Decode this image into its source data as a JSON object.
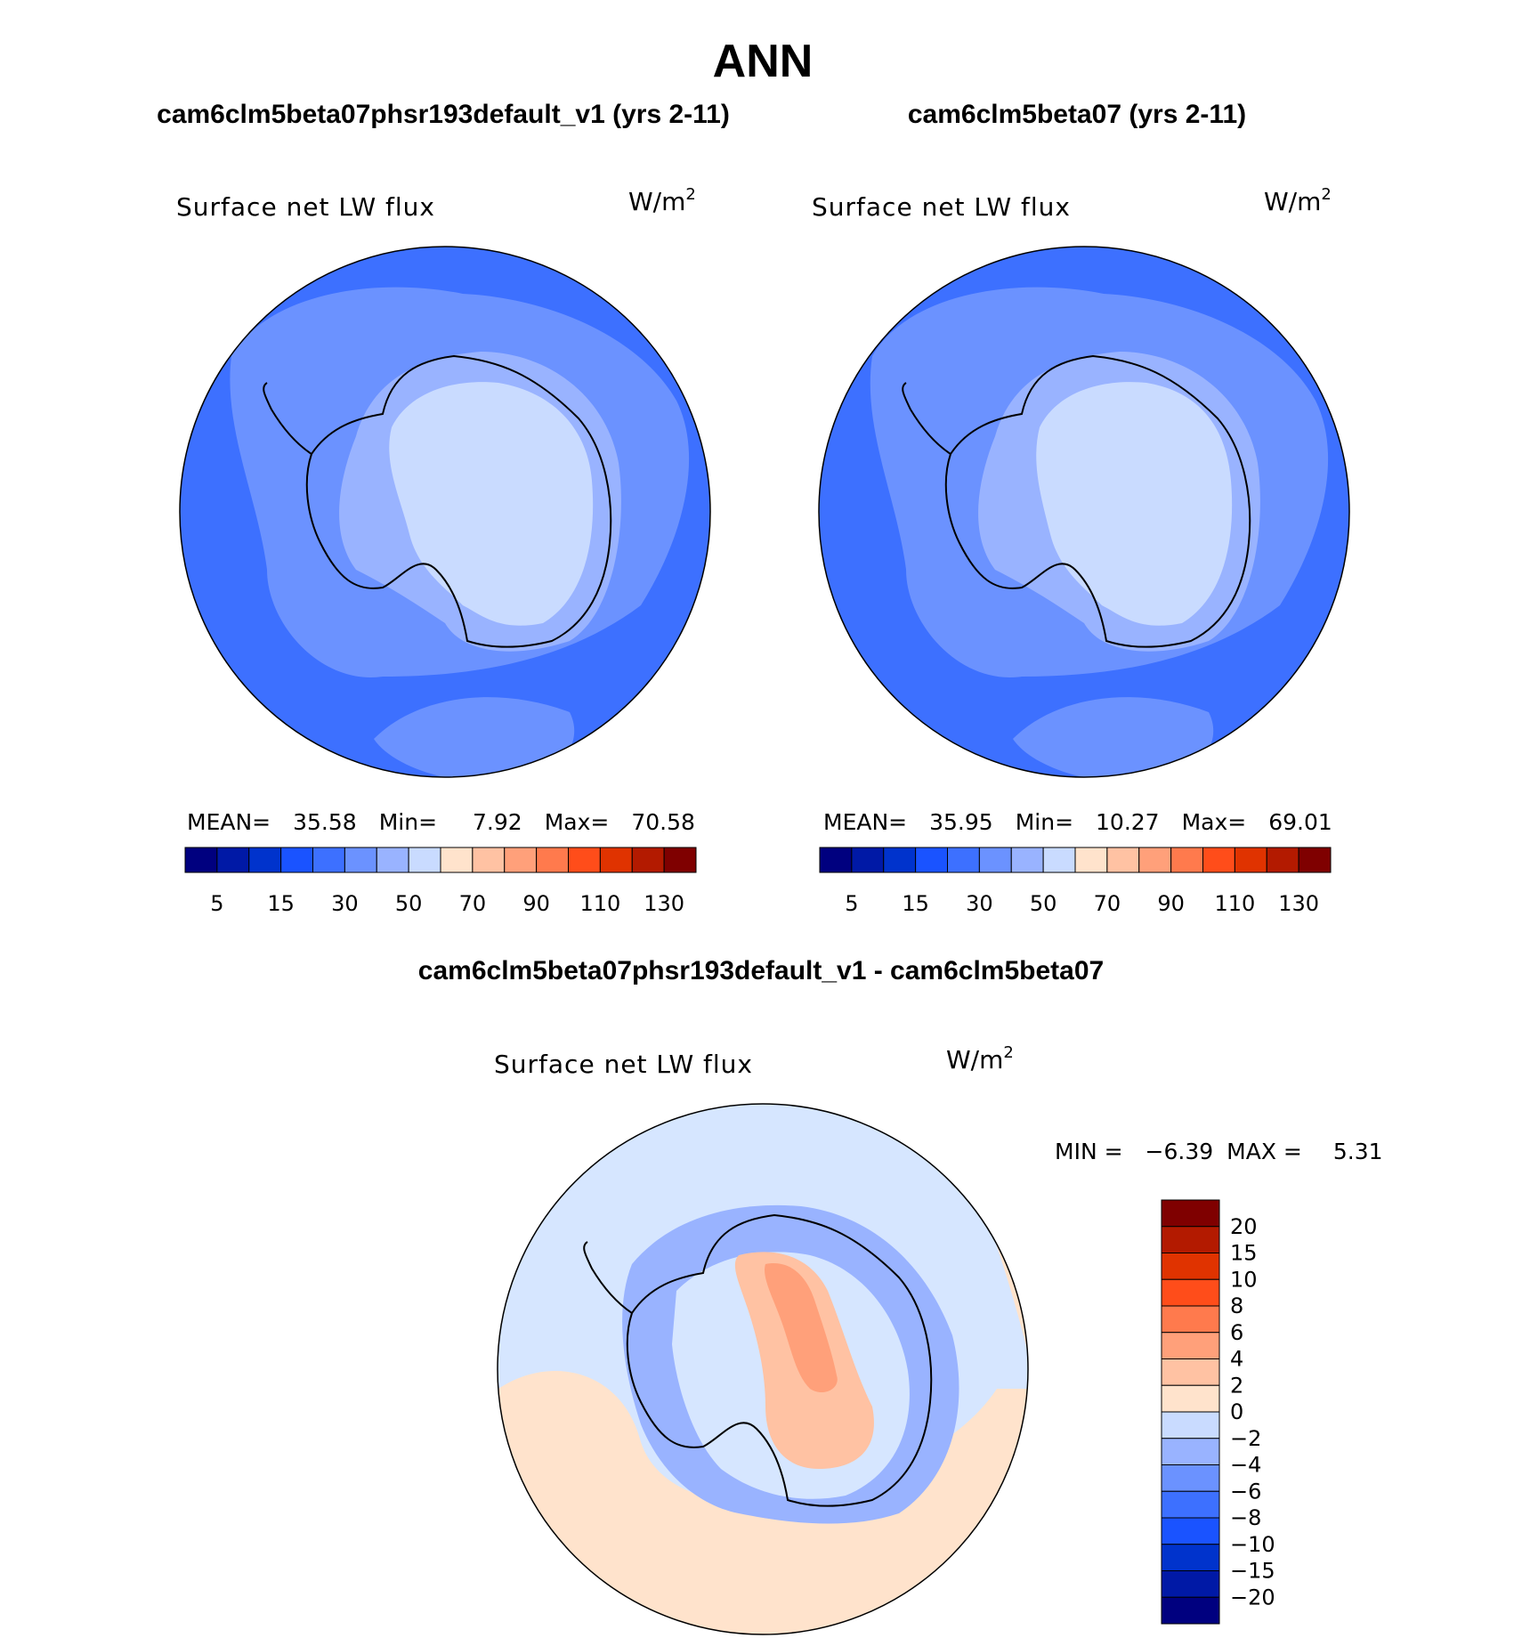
{
  "title": "ANN",
  "colors": {
    "abs": [
      "#00007f",
      "#0019a6",
      "#0033cc",
      "#1a53ff",
      "#3d70ff",
      "#6b92ff",
      "#99b3ff",
      "#c9dbff",
      "#ffe3cc",
      "#ffc2a3",
      "#ffa07a",
      "#ff7a4d",
      "#ff4d1a",
      "#e03300",
      "#b31a00",
      "#7f0000"
    ],
    "diff": [
      "#00007f",
      "#0019a6",
      "#0033cc",
      "#1a53ff",
      "#3d70ff",
      "#6b92ff",
      "#99b3ff",
      "#c9dbff",
      "#ffe3cc",
      "#ffc2a3",
      "#ffa07a",
      "#ff7a4d",
      "#ff4d1a",
      "#e03300",
      "#b31a00",
      "#7f0000"
    ]
  },
  "chart_data": [
    {
      "type": "heatmap",
      "title": "cam6clm5beta07phsr193default_v1 (yrs 2-11)",
      "variable": "Surface net LW flux",
      "units": "W/m",
      "units_exponent": "2",
      "stats": {
        "mean_label": "MEAN=",
        "mean": "35.58",
        "min_label": "Min=",
        "min": "7.92",
        "max_label": "Max=",
        "max": "70.58"
      },
      "colorbar_ticks": [
        "5",
        "15",
        "30",
        "50",
        "70",
        "90",
        "110",
        "130"
      ]
    },
    {
      "type": "heatmap",
      "title": "cam6clm5beta07 (yrs 2-11)",
      "variable": "Surface net LW flux",
      "units": "W/m",
      "units_exponent": "2",
      "stats": {
        "mean_label": "MEAN=",
        "mean": "35.95",
        "min_label": "Min=",
        "min": "10.27",
        "max_label": "Max=",
        "max": "69.01"
      },
      "colorbar_ticks": [
        "5",
        "15",
        "30",
        "50",
        "70",
        "90",
        "110",
        "130"
      ]
    },
    {
      "type": "heatmap",
      "title": "cam6clm5beta07phsr193default_v1 - cam6clm5beta07",
      "variable": "Surface net LW flux",
      "units": "W/m",
      "units_exponent": "2",
      "stats": {
        "min_label": "MIN =",
        "min": "−6.39",
        "max_label": "MAX =",
        "max": "5.31"
      },
      "colorbar_ticks": [
        "20",
        "15",
        "10",
        "8",
        "6",
        "4",
        "2",
        "0",
        "−2",
        "−4",
        "−6",
        "−8",
        "−10",
        "−15",
        "−20"
      ]
    }
  ]
}
